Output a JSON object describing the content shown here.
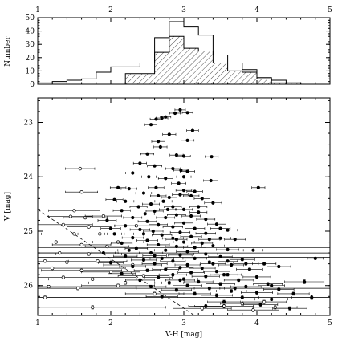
{
  "chart_data": [
    {
      "type": "histogram",
      "ylabel": "Number",
      "ylim": [
        0,
        50
      ],
      "xlim": [
        1,
        5
      ],
      "x_ticks": [
        1,
        2,
        3,
        4,
        5
      ],
      "y_ticks": [
        0,
        10,
        20,
        30,
        40,
        50
      ],
      "bin_edges": [
        1.0,
        1.2,
        1.4,
        1.6,
        1.8,
        2.0,
        2.2,
        2.4,
        2.6,
        2.8,
        3.0,
        3.2,
        3.4,
        3.6,
        3.8,
        4.0,
        4.2,
        4.4,
        4.6,
        4.8,
        5.0
      ],
      "series": [
        {
          "style": "open",
          "counts": [
            1,
            2,
            3,
            4,
            9,
            13,
            13,
            16,
            35,
            47,
            43,
            37,
            22,
            16,
            11,
            5,
            3,
            1,
            0,
            0
          ]
        },
        {
          "style": "hatched",
          "counts": [
            0,
            0,
            0,
            0,
            0,
            0,
            8,
            8,
            24,
            36,
            27,
            25,
            16,
            10,
            9,
            4,
            1,
            1,
            0,
            0
          ]
        }
      ]
    },
    {
      "type": "scatter",
      "xlabel": "V-H [mag]",
      "ylabel": "V [mag]",
      "xlim": [
        1,
        5
      ],
      "ylim": [
        26.55,
        22.55
      ],
      "x_ticks": [
        1,
        2,
        3,
        4,
        5
      ],
      "y_ticks": [
        23,
        24,
        25,
        26
      ],
      "completeness_line": {
        "x": [
          1.0,
          3.2
        ],
        "y": [
          24.6,
          26.6
        ]
      },
      "filled": [
        [
          2.95,
          22.77,
          0.08
        ],
        [
          2.88,
          22.83,
          0.08
        ],
        [
          3.05,
          22.82,
          0.08
        ],
        [
          2.75,
          22.9,
          0.08
        ],
        [
          2.7,
          22.92,
          0.09
        ],
        [
          2.62,
          22.94,
          0.09
        ],
        [
          2.55,
          23.04,
          0.09
        ],
        [
          3.12,
          23.15,
          0.09
        ],
        [
          2.8,
          23.22,
          0.1
        ],
        [
          2.65,
          23.35,
          0.1
        ],
        [
          2.68,
          23.45,
          0.1
        ],
        [
          2.9,
          23.6,
          0.1
        ],
        [
          3.0,
          23.62,
          0.1
        ],
        [
          2.5,
          23.58,
          0.1
        ],
        [
          3.38,
          23.63,
          0.1
        ],
        [
          2.4,
          23.75,
          0.1
        ],
        [
          2.6,
          23.8,
          0.11
        ],
        [
          2.85,
          23.85,
          0.11
        ],
        [
          2.96,
          23.88,
          0.11
        ],
        [
          3.05,
          23.9,
          0.11
        ],
        [
          2.3,
          23.93,
          0.11
        ],
        [
          2.52,
          24.0,
          0.11
        ],
        [
          2.75,
          24.03,
          0.11
        ],
        [
          3.37,
          24.07,
          0.11
        ],
        [
          2.93,
          24.12,
          0.11
        ],
        [
          2.1,
          24.2,
          0.12
        ],
        [
          2.25,
          24.22,
          0.12
        ],
        [
          2.62,
          24.2,
          0.12
        ],
        [
          3.0,
          24.25,
          0.12
        ],
        [
          3.15,
          24.27,
          0.12
        ],
        [
          2.45,
          24.3,
          0.12
        ],
        [
          2.95,
          24.33,
          0.12
        ],
        [
          3.1,
          24.35,
          0.12
        ],
        [
          2.8,
          24.38,
          0.12
        ],
        [
          3.25,
          24.4,
          0.12
        ],
        [
          2.05,
          24.42,
          0.13
        ],
        [
          2.2,
          24.45,
          0.13
        ],
        [
          2.55,
          24.5,
          0.13
        ],
        [
          2.72,
          24.45,
          0.13
        ],
        [
          3.4,
          24.48,
          0.13
        ],
        [
          2.38,
          24.55,
          0.13
        ],
        [
          2.85,
          24.55,
          0.13
        ],
        [
          3.0,
          24.6,
          0.13
        ],
        [
          2.15,
          24.62,
          0.13
        ],
        [
          2.6,
          24.63,
          0.13
        ],
        [
          3.2,
          24.65,
          0.13
        ],
        [
          2.47,
          24.68,
          0.14
        ],
        [
          2.9,
          24.7,
          0.14
        ],
        [
          3.1,
          24.72,
          0.14
        ],
        [
          2.3,
          24.75,
          0.14
        ],
        [
          2.75,
          24.75,
          0.14
        ],
        [
          3.3,
          24.78,
          0.14
        ],
        [
          1.95,
          24.8,
          0.14
        ],
        [
          2.5,
          24.82,
          0.14
        ],
        [
          3.0,
          24.85,
          0.14
        ],
        [
          2.65,
          24.88,
          0.14
        ],
        [
          3.45,
          24.87,
          0.14
        ],
        [
          2.2,
          24.9,
          0.15
        ],
        [
          2.85,
          24.92,
          0.15
        ],
        [
          3.15,
          24.95,
          0.15
        ],
        [
          2.4,
          24.97,
          0.15
        ],
        [
          3.6,
          24.98,
          0.15
        ],
        [
          2.58,
          25.0,
          0.15
        ],
        [
          2.95,
          25.02,
          0.15
        ],
        [
          3.3,
          25.04,
          0.15
        ],
        [
          2.05,
          25.05,
          0.15
        ],
        [
          2.7,
          25.07,
          0.15
        ],
        [
          3.1,
          25.1,
          0.16
        ],
        [
          2.3,
          25.12,
          0.16
        ],
        [
          2.85,
          25.13,
          0.16
        ],
        [
          3.5,
          25.13,
          0.16
        ],
        [
          3.7,
          25.15,
          0.16
        ],
        [
          2.5,
          25.17,
          0.16
        ],
        [
          3.0,
          25.2,
          0.16
        ],
        [
          2.15,
          25.22,
          0.16
        ],
        [
          3.25,
          25.22,
          0.16
        ],
        [
          2.65,
          25.25,
          0.17
        ],
        [
          3.4,
          25.27,
          0.17
        ],
        [
          2.9,
          25.28,
          0.17
        ],
        [
          3.15,
          25.3,
          0.17
        ],
        [
          2.35,
          25.32,
          0.17
        ],
        [
          3.6,
          25.34,
          0.17
        ],
        [
          2.75,
          25.35,
          0.17
        ],
        [
          3.05,
          25.38,
          0.17
        ],
        [
          1.9,
          25.4,
          0.18
        ],
        [
          2.55,
          25.4,
          0.18
        ],
        [
          3.3,
          25.42,
          0.18
        ],
        [
          2.95,
          25.44,
          0.18
        ],
        [
          2.2,
          25.46,
          0.18
        ],
        [
          3.5,
          25.47,
          0.18
        ],
        [
          2.7,
          25.5,
          0.18
        ],
        [
          3.15,
          25.5,
          0.18
        ],
        [
          2.45,
          25.53,
          0.19
        ],
        [
          3.8,
          25.52,
          0.19
        ],
        [
          2.85,
          25.55,
          0.19
        ],
        [
          3.35,
          25.57,
          0.19
        ],
        [
          2.0,
          25.58,
          0.19
        ],
        [
          2.6,
          25.6,
          0.19
        ],
        [
          3.05,
          25.62,
          0.19
        ],
        [
          3.65,
          25.62,
          0.19
        ],
        [
          2.3,
          25.65,
          0.2
        ],
        [
          2.95,
          25.67,
          0.2
        ],
        [
          3.25,
          25.68,
          0.2
        ],
        [
          2.75,
          25.7,
          0.2
        ],
        [
          3.9,
          25.7,
          0.2
        ],
        [
          2.5,
          25.72,
          0.2
        ],
        [
          3.45,
          25.74,
          0.2
        ],
        [
          3.1,
          25.76,
          0.2
        ],
        [
          2.15,
          25.78,
          0.21
        ],
        [
          2.85,
          25.8,
          0.21
        ],
        [
          3.6,
          25.8,
          0.21
        ],
        [
          3.3,
          25.83,
          0.21
        ],
        [
          2.65,
          25.85,
          0.21
        ],
        [
          4.0,
          25.84,
          0.21
        ],
        [
          3.0,
          25.88,
          0.21
        ],
        [
          2.4,
          25.9,
          0.22
        ],
        [
          3.75,
          25.9,
          0.22
        ],
        [
          3.2,
          25.93,
          0.22
        ],
        [
          2.8,
          25.95,
          0.22
        ],
        [
          3.5,
          25.97,
          0.22
        ],
        [
          4.15,
          25.97,
          0.22
        ],
        [
          3.05,
          26.0,
          0.22
        ],
        [
          2.55,
          26.02,
          0.23
        ],
        [
          3.85,
          26.02,
          0.23
        ],
        [
          3.35,
          26.05,
          0.23
        ],
        [
          4.3,
          26.07,
          0.23
        ],
        [
          2.9,
          26.08,
          0.23
        ],
        [
          3.65,
          26.1,
          0.23
        ],
        [
          4.0,
          26.13,
          0.24
        ],
        [
          3.15,
          26.15,
          0.24
        ],
        [
          4.5,
          26.15,
          0.24
        ],
        [
          3.45,
          26.18,
          0.24
        ],
        [
          2.7,
          26.2,
          0.24
        ],
        [
          3.8,
          26.22,
          0.25
        ],
        [
          4.2,
          26.25,
          0.25
        ],
        [
          4.65,
          25.93,
          0.3
        ],
        [
          4.75,
          26.22,
          0.3
        ],
        [
          3.55,
          26.3,
          0.25
        ],
        [
          4.05,
          26.35,
          0.26
        ],
        [
          3.3,
          26.38,
          0.26
        ],
        [
          4.45,
          26.42,
          0.26
        ],
        [
          4.8,
          25.5,
          0.12
        ],
        [
          4.02,
          24.2,
          0.1
        ],
        [
          3.6,
          25.55,
          0.15
        ],
        [
          4.1,
          25.6,
          0.18
        ],
        [
          3.95,
          25.35,
          0.15
        ],
        [
          4.3,
          25.65,
          0.18
        ],
        [
          4.2,
          26.0,
          0.2
        ],
        [
          2.0,
          24.95,
          0.15
        ],
        [
          3.05,
          23.33,
          0.1
        ],
        [
          2.65,
          24.35,
          0.12
        ],
        [
          3.5,
          24.95,
          0.15
        ],
        [
          2.25,
          25.35,
          0.17
        ],
        [
          2.95,
          25.9,
          0.22
        ],
        [
          3.7,
          26.05,
          0.23
        ],
        [
          3.4,
          25.6,
          0.19
        ],
        [
          2.6,
          25.45,
          0.18
        ],
        [
          3.2,
          24.55,
          0.13
        ],
        [
          2.78,
          24.6,
          0.13
        ],
        [
          3.0,
          24.0,
          0.11
        ],
        [
          2.9,
          25.15,
          0.16
        ],
        [
          3.35,
          25.15,
          0.16
        ],
        [
          3.55,
          25.8,
          0.21
        ],
        [
          2.45,
          25.05,
          0.15
        ],
        [
          3.85,
          25.6,
          0.19
        ]
      ],
      "open": [
        [
          1.58,
          23.85,
          0.1,
          0.2
        ],
        [
          1.6,
          24.28,
          0.12,
          0.22
        ],
        [
          1.5,
          24.62,
          0.13,
          0.35
        ],
        [
          1.45,
          24.73,
          0.14,
          0.3
        ],
        [
          1.65,
          24.75,
          0.14,
          0.3
        ],
        [
          1.9,
          24.72,
          0.14,
          0.25
        ],
        [
          1.35,
          24.88,
          0.15,
          0.4
        ],
        [
          1.7,
          24.92,
          0.15,
          0.3
        ],
        [
          1.5,
          25.05,
          0.15,
          0.45
        ],
        [
          1.85,
          25.05,
          0.15,
          0.3
        ],
        [
          1.25,
          25.2,
          0.16,
          0.6
        ],
        [
          1.6,
          25.25,
          0.17,
          0.4
        ],
        [
          1.95,
          25.28,
          0.17,
          0.3
        ],
        [
          1.3,
          25.4,
          0.18,
          0.8
        ],
        [
          1.7,
          25.42,
          0.18,
          0.45
        ],
        [
          1.1,
          25.55,
          0.19,
          0.9
        ],
        [
          1.4,
          25.57,
          0.19,
          0.6
        ],
        [
          1.82,
          25.55,
          0.19,
          0.4
        ],
        [
          1.2,
          25.68,
          0.2,
          1.0
        ],
        [
          1.6,
          25.72,
          0.2,
          0.55
        ],
        [
          2.0,
          25.75,
          0.2,
          0.4
        ],
        [
          1.35,
          25.85,
          0.21,
          1.0
        ],
        [
          1.75,
          25.88,
          0.21,
          0.6
        ],
        [
          1.15,
          26.02,
          0.22,
          1.2
        ],
        [
          1.55,
          26.05,
          0.23,
          0.8
        ],
        [
          2.1,
          26.0,
          0.22,
          0.5
        ],
        [
          1.1,
          26.22,
          0.24,
          1.3
        ],
        [
          2.2,
          25.95,
          0.22,
          0.5
        ],
        [
          1.75,
          26.4,
          0.26,
          1.0
        ],
        [
          2.3,
          25.62,
          0.19,
          0.4
        ],
        [
          2.1,
          25.2,
          0.16,
          0.35
        ],
        [
          2.35,
          24.9,
          0.15,
          0.3
        ],
        [
          2.45,
          25.82,
          0.21,
          0.35
        ],
        [
          3.55,
          26.38,
          0.26,
          0.4
        ],
        [
          3.95,
          26.45,
          0.26,
          0.35
        ],
        [
          4.25,
          26.4,
          0.26,
          0.3
        ],
        [
          3.8,
          26.33,
          0.25,
          0.3
        ],
        [
          4.1,
          26.3,
          0.25,
          0.3
        ],
        [
          2.6,
          26.15,
          0.24,
          0.4
        ],
        [
          3.25,
          26.42,
          0.26,
          0.4
        ]
      ],
      "hlines": [
        25.3,
        25.4,
        25.48,
        25.57,
        26.05,
        26.22
      ]
    }
  ]
}
